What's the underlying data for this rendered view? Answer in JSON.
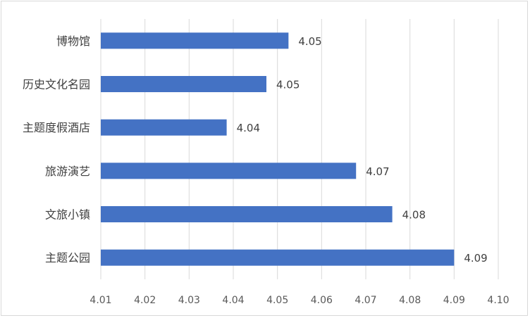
{
  "chart_data": {
    "type": "bar",
    "orientation": "horizontal",
    "categories": [
      "博物馆",
      "历史文化名园",
      "主题度假酒店",
      "旅游演艺",
      "文旅小镇",
      "主题公园"
    ],
    "values": [
      4.0525,
      4.0475,
      4.0385,
      4.0678,
      4.076,
      4.09
    ],
    "data_labels": [
      "4.05",
      "4.05",
      "4.04",
      "4.07",
      "4.08",
      "4.09"
    ],
    "xlim": [
      4.01,
      4.1
    ],
    "x_ticks": [
      "4.01",
      "4.02",
      "4.03",
      "4.04",
      "4.05",
      "4.06",
      "4.07",
      "4.08",
      "4.09",
      "4.10"
    ],
    "grid": true,
    "legend": "none",
    "color": "#4472c4"
  }
}
